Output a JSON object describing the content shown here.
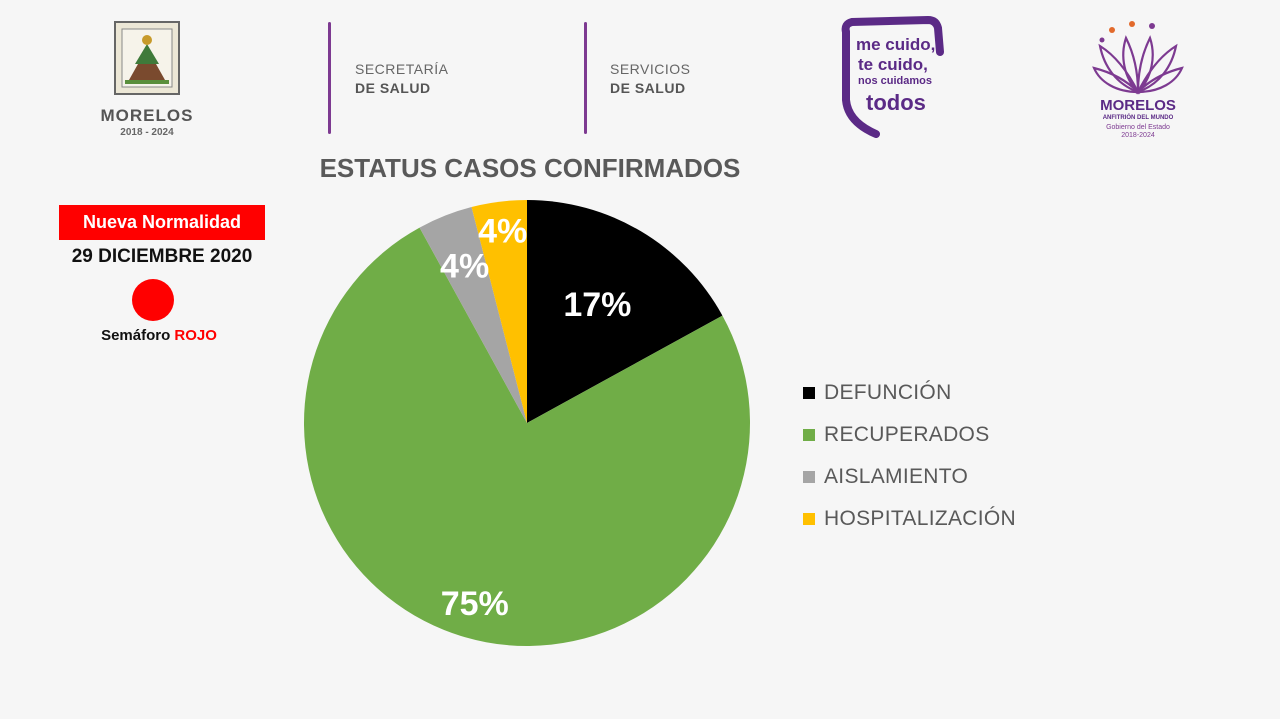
{
  "header": {
    "state_logo": {
      "name": "MORELOS",
      "years": "2018 - 2024"
    },
    "dept1": {
      "line1": "SECRETARÍA",
      "line2": "DE SALUD"
    },
    "dept2": {
      "line1": "SERVICIOS",
      "line2": "DE SALUD"
    },
    "campaign_logo": {
      "line1": "me cuido,",
      "line2": "te cuido,",
      "line3": "nos cuidamos",
      "line4": "todos"
    },
    "gov_logo": {
      "name": "MORELOS",
      "tagline": "ANFITRIÓN DEL MUNDO",
      "sub1": "Gobierno del Estado",
      "sub2": "2018-2024"
    },
    "accent_color": "#7d3a91"
  },
  "info": {
    "badge": "Nueva Normalidad",
    "date": "29 DICIEMBRE 2020",
    "traffic_prefix": "Semáforo ",
    "traffic_status": "ROJO",
    "traffic_color": "#ff0000"
  },
  "chart_data": {
    "type": "pie",
    "title": "ESTATUS CASOS CONFIRMADOS",
    "categories": [
      "DEFUNCIÓN",
      "RECUPERADOS",
      "AISLAMIENTO",
      "HOSPITALIZACIÓN"
    ],
    "values": [
      17,
      75,
      4,
      4
    ],
    "labels": [
      "17%",
      "75%",
      "4%",
      "4%"
    ],
    "colors": [
      "#000000",
      "#70ad47",
      "#a5a5a5",
      "#ffc000"
    ],
    "start_angle": "12 o'clock",
    "direction": "clockwise",
    "legend_position": "right"
  }
}
